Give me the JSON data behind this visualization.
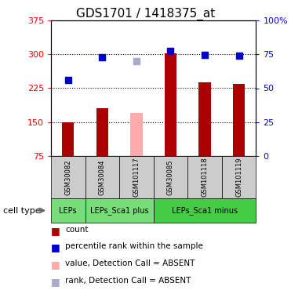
{
  "title": "GDS1701 / 1418375_at",
  "samples": [
    "GSM30082",
    "GSM30084",
    "GSM101117",
    "GSM30085",
    "GSM101118",
    "GSM101119"
  ],
  "bar_values": [
    150,
    180,
    null,
    302,
    238,
    235
  ],
  "bar_absent_values": [
    null,
    null,
    170,
    null,
    null,
    null
  ],
  "bar_colors": [
    "#aa0000",
    "#aa0000",
    null,
    "#aa0000",
    "#aa0000",
    "#aa0000"
  ],
  "bar_absent_color": "#ffaaaa",
  "rank_values": [
    243,
    293,
    null,
    308,
    299,
    298
  ],
  "rank_absent_values": [
    null,
    null,
    285,
    null,
    null,
    null
  ],
  "rank_color": "#0000cc",
  "rank_absent_color": "#aaaacc",
  "ylim_left": [
    75,
    375
  ],
  "ylim_right": [
    0,
    100
  ],
  "yticks_left": [
    75,
    150,
    225,
    300,
    375
  ],
  "ytick_labels_left": [
    "75",
    "150",
    "225",
    "300",
    "375"
  ],
  "yticks_right": [
    0,
    25,
    50,
    75,
    100
  ],
  "ytick_labels_right": [
    "0",
    "25",
    "50",
    "75",
    "100%"
  ],
  "cell_type_groups": [
    {
      "label": "LEPs",
      "start": 0,
      "end": 1,
      "color": "#77dd77"
    },
    {
      "label": "LEPs_Sca1 plus",
      "start": 1,
      "end": 3,
      "color": "#77dd77"
    },
    {
      "label": "LEPs_Sca1 minus",
      "start": 3,
      "end": 6,
      "color": "#44cc44"
    }
  ],
  "cell_type_label": "cell type",
  "legend_items": [
    {
      "label": "count",
      "color": "#aa0000"
    },
    {
      "label": "percentile rank within the sample",
      "color": "#0000cc"
    },
    {
      "label": "value, Detection Call = ABSENT",
      "color": "#ffaaaa"
    },
    {
      "label": "rank, Detection Call = ABSENT",
      "color": "#aaaacc"
    }
  ],
  "bar_width": 0.35,
  "marker_size": 6,
  "title_fontsize": 11,
  "tick_fontsize": 8,
  "sample_fontsize": 6,
  "celltype_fontsize": 7,
  "legend_fontsize": 7.5
}
